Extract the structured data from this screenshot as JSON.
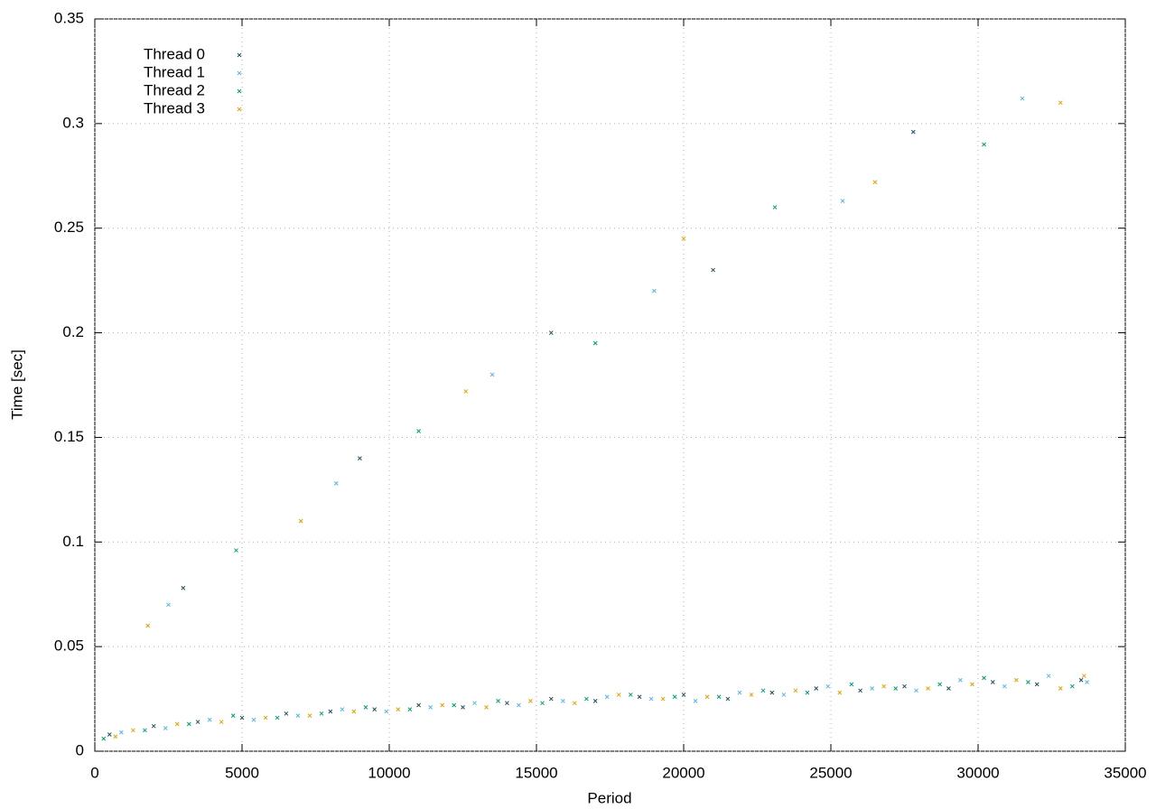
{
  "chart_data": {
    "type": "scatter",
    "x_label": "Period",
    "y_label": "Time [sec]",
    "xlim": [
      0,
      35000
    ],
    "ylim": [
      0,
      0.35
    ],
    "xticks": [
      0,
      5000,
      10000,
      15000,
      20000,
      25000,
      30000,
      35000
    ],
    "yticks": [
      0,
      0.05,
      0.1,
      0.15,
      0.2,
      0.25,
      0.3,
      0.35
    ],
    "grid": true,
    "legend": "upper-left",
    "series": [
      {
        "name": "Thread 0",
        "color": "#1f4e5f",
        "x": [
          500,
          2000,
          3500,
          5000,
          6500,
          8000,
          9500,
          11000,
          12500,
          14000,
          15500,
          17000,
          18500,
          20000,
          21500,
          23000,
          24500,
          26000,
          27500,
          29000,
          30500,
          32000,
          33500,
          3000,
          9000,
          15500,
          21000,
          27800
        ],
        "values": [
          0.008,
          0.012,
          0.014,
          0.016,
          0.018,
          0.019,
          0.02,
          0.022,
          0.021,
          0.023,
          0.025,
          0.024,
          0.026,
          0.027,
          0.025,
          0.028,
          0.03,
          0.029,
          0.031,
          0.03,
          0.033,
          0.032,
          0.034,
          0.078,
          0.14,
          0.2,
          0.23,
          0.296
        ]
      },
      {
        "name": "Thread 1",
        "color": "#56b4e9",
        "x": [
          900,
          2400,
          3900,
          5400,
          6900,
          8400,
          9900,
          11400,
          12900,
          14400,
          15900,
          17400,
          18900,
          20400,
          21900,
          23400,
          24900,
          26400,
          27900,
          29400,
          30900,
          32400,
          33700,
          2500,
          8200,
          13500,
          19000,
          25400,
          31500
        ],
        "values": [
          0.009,
          0.011,
          0.015,
          0.015,
          0.017,
          0.02,
          0.019,
          0.021,
          0.023,
          0.022,
          0.024,
          0.026,
          0.025,
          0.024,
          0.028,
          0.027,
          0.031,
          0.03,
          0.029,
          0.034,
          0.031,
          0.036,
          0.033,
          0.07,
          0.128,
          0.18,
          0.22,
          0.263,
          0.312
        ]
      },
      {
        "name": "Thread 2",
        "color": "#009e73",
        "x": [
          300,
          1700,
          3200,
          4700,
          6200,
          7700,
          9200,
          10700,
          12200,
          13700,
          15200,
          16700,
          18200,
          19700,
          21200,
          22700,
          24200,
          25700,
          27200,
          28700,
          30200,
          31700,
          33200,
          4800,
          11000,
          17000,
          23100,
          30200
        ],
        "values": [
          0.006,
          0.01,
          0.013,
          0.017,
          0.016,
          0.018,
          0.021,
          0.02,
          0.022,
          0.024,
          0.023,
          0.025,
          0.027,
          0.026,
          0.026,
          0.029,
          0.028,
          0.032,
          0.03,
          0.032,
          0.035,
          0.033,
          0.031,
          0.096,
          0.153,
          0.195,
          0.26,
          0.29
        ]
      },
      {
        "name": "Thread 3",
        "color": "#e69f00",
        "x": [
          700,
          1300,
          2800,
          4300,
          5800,
          7300,
          8800,
          10300,
          11800,
          13300,
          14800,
          16300,
          17800,
          19300,
          20800,
          22300,
          23800,
          25300,
          26800,
          28300,
          29800,
          31300,
          32800,
          33600,
          1800,
          7000,
          12600,
          20000,
          26500,
          32800
        ],
        "values": [
          0.007,
          0.01,
          0.013,
          0.014,
          0.016,
          0.017,
          0.019,
          0.02,
          0.022,
          0.021,
          0.024,
          0.023,
          0.027,
          0.025,
          0.026,
          0.027,
          0.029,
          0.028,
          0.031,
          0.03,
          0.032,
          0.034,
          0.03,
          0.036,
          0.06,
          0.11,
          0.172,
          0.245,
          0.272,
          0.31
        ]
      }
    ]
  }
}
